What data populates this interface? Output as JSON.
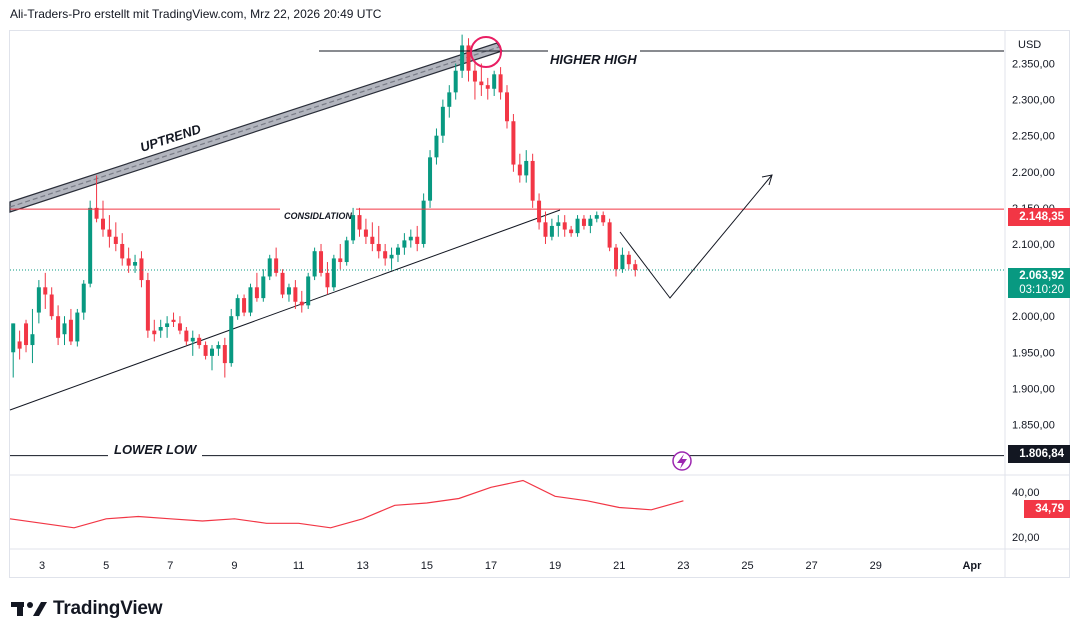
{
  "header": {
    "attribution": "Ali-Traders-Pro erstellt mit TradingView.com, Mrz 22, 2026 20:49 UTC"
  },
  "brand": {
    "name": "TradingView"
  },
  "chart_data": {
    "type": "candlestick",
    "price_axis": {
      "currency": "USD",
      "ticks": [
        "2.350,00",
        "2.300,00",
        "2.250,00",
        "2.200,00",
        "2.150,00",
        "2.100,00",
        "2.050,00",
        "2.000,00",
        "1.950,00",
        "1.900,00",
        "1.850,00"
      ],
      "tick_values": [
        2350,
        2300,
        2250,
        2200,
        2150,
        2100,
        2050,
        2000,
        1950,
        1900,
        1850
      ],
      "range": [
        1780,
        2395
      ]
    },
    "time_axis": {
      "ticks": [
        "3",
        "5",
        "7",
        "9",
        "11",
        "13",
        "15",
        "17",
        "19",
        "21",
        "23",
        "25",
        "27",
        "29",
        "Apr"
      ],
      "tick_positions": [
        3,
        5,
        7,
        9,
        11,
        13,
        15,
        17,
        19,
        21,
        23,
        25,
        27,
        29,
        32
      ],
      "range": [
        2.0,
        33.0
      ]
    },
    "price_labels": [
      {
        "value": 2148.35,
        "text": "2.148,35",
        "color": "#f23645"
      },
      {
        "value": 2063.92,
        "text": "2.063,92",
        "subtext": "03:10:20",
        "color": "#089981"
      },
      {
        "value": 1806.84,
        "text": "1.806,84",
        "color": "#131722"
      }
    ],
    "annotations": {
      "higher_high": "HIGHER HIGH",
      "uptrend": "UPTREND",
      "consolidation": "CONSIDLATION",
      "lower_low": "LOWER LOW"
    },
    "levels": {
      "higher_high": 2380,
      "consolidation": 2148.35,
      "lower_low": 1806.84,
      "last_price": 2063.92
    },
    "candles": [
      [
        2.1,
        1950,
        1990,
        1915,
        1990
      ],
      [
        2.3,
        1965,
        1980,
        1940,
        1955
      ],
      [
        2.5,
        1990,
        1995,
        1950,
        1960
      ],
      [
        2.7,
        1960,
        2010,
        1935,
        1975
      ],
      [
        2.9,
        2005,
        2050,
        1990,
        2040
      ],
      [
        3.1,
        2040,
        2060,
        2010,
        2030
      ],
      [
        3.3,
        2030,
        2040,
        1995,
        2000
      ],
      [
        3.5,
        2000,
        2015,
        1960,
        1970
      ],
      [
        3.7,
        1975,
        2000,
        1960,
        1990
      ],
      [
        3.9,
        1995,
        2010,
        1960,
        1965
      ],
      [
        4.1,
        1965,
        2010,
        1958,
        2005
      ],
      [
        4.3,
        2005,
        2050,
        1995,
        2045
      ],
      [
        4.5,
        2045,
        2160,
        2040,
        2150
      ],
      [
        4.7,
        2150,
        2195,
        2130,
        2135
      ],
      [
        4.9,
        2135,
        2160,
        2110,
        2120
      ],
      [
        5.1,
        2120,
        2140,
        2095,
        2110
      ],
      [
        5.3,
        2110,
        2130,
        2090,
        2100
      ],
      [
        5.5,
        2100,
        2115,
        2070,
        2080
      ],
      [
        5.7,
        2080,
        2095,
        2060,
        2070
      ],
      [
        5.9,
        2070,
        2085,
        2060,
        2075
      ],
      [
        6.1,
        2080,
        2090,
        2040,
        2050
      ],
      [
        6.3,
        2050,
        2060,
        1970,
        1980
      ],
      [
        6.5,
        1980,
        1995,
        1965,
        1975
      ],
      [
        6.7,
        1980,
        1995,
        1970,
        1985
      ],
      [
        6.9,
        1985,
        2000,
        1970,
        1990
      ],
      [
        7.1,
        1995,
        2005,
        1985,
        1992
      ],
      [
        7.3,
        1990,
        2000,
        1975,
        1980
      ],
      [
        7.5,
        1980,
        1985,
        1960,
        1965
      ],
      [
        7.7,
        1965,
        1980,
        1945,
        1970
      ],
      [
        7.9,
        1970,
        1975,
        1955,
        1960
      ],
      [
        8.1,
        1960,
        1965,
        1940,
        1945
      ],
      [
        8.3,
        1945,
        1960,
        1925,
        1955
      ],
      [
        8.5,
        1955,
        1965,
        1945,
        1960
      ],
      [
        8.7,
        1960,
        1970,
        1915,
        1935
      ],
      [
        8.9,
        1935,
        2010,
        1930,
        2000
      ],
      [
        9.1,
        2000,
        2030,
        1995,
        2025
      ],
      [
        9.3,
        2025,
        2030,
        2000,
        2005
      ],
      [
        9.5,
        2005,
        2045,
        2000,
        2040
      ],
      [
        9.7,
        2040,
        2060,
        2020,
        2025
      ],
      [
        9.9,
        2025,
        2065,
        2020,
        2055
      ],
      [
        10.1,
        2055,
        2085,
        2050,
        2080
      ],
      [
        10.3,
        2080,
        2095,
        2055,
        2060
      ],
      [
        10.5,
        2060,
        2065,
        2025,
        2030
      ],
      [
        10.7,
        2030,
        2045,
        2020,
        2040
      ],
      [
        10.9,
        2040,
        2050,
        2010,
        2020
      ],
      [
        11.1,
        2020,
        2035,
        2005,
        2015
      ],
      [
        11.3,
        2015,
        2060,
        2010,
        2055
      ],
      [
        11.5,
        2055,
        2095,
        2050,
        2090
      ],
      [
        11.7,
        2090,
        2100,
        2055,
        2060
      ],
      [
        11.9,
        2060,
        2075,
        2030,
        2040
      ],
      [
        12.1,
        2040,
        2085,
        2035,
        2080
      ],
      [
        12.3,
        2080,
        2100,
        2065,
        2075
      ],
      [
        12.5,
        2075,
        2110,
        2070,
        2105
      ],
      [
        12.7,
        2105,
        2150,
        2100,
        2140
      ],
      [
        12.9,
        2140,
        2150,
        2110,
        2120
      ],
      [
        13.1,
        2120,
        2135,
        2100,
        2110
      ],
      [
        13.3,
        2110,
        2130,
        2090,
        2100
      ],
      [
        13.5,
        2100,
        2125,
        2080,
        2090
      ],
      [
        13.7,
        2090,
        2100,
        2070,
        2080
      ],
      [
        13.9,
        2080,
        2095,
        2065,
        2085
      ],
      [
        14.1,
        2085,
        2100,
        2075,
        2095
      ],
      [
        14.3,
        2095,
        2115,
        2085,
        2105
      ],
      [
        14.5,
        2105,
        2120,
        2095,
        2110
      ],
      [
        14.7,
        2110,
        2125,
        2090,
        2100
      ],
      [
        14.9,
        2100,
        2170,
        2095,
        2160
      ],
      [
        15.1,
        2160,
        2230,
        2150,
        2220
      ],
      [
        15.3,
        2220,
        2260,
        2210,
        2250
      ],
      [
        15.5,
        2250,
        2300,
        2240,
        2290
      ],
      [
        15.7,
        2290,
        2320,
        2275,
        2310
      ],
      [
        15.9,
        2310,
        2350,
        2300,
        2340
      ],
      [
        16.1,
        2340,
        2390,
        2330,
        2375
      ],
      [
        16.3,
        2375,
        2385,
        2325,
        2340
      ],
      [
        16.5,
        2340,
        2350,
        2300,
        2325
      ],
      [
        16.7,
        2325,
        2350,
        2305,
        2320
      ],
      [
        16.9,
        2320,
        2330,
        2300,
        2315
      ],
      [
        17.1,
        2315,
        2340,
        2305,
        2335
      ],
      [
        17.3,
        2335,
        2345,
        2300,
        2310
      ],
      [
        17.5,
        2310,
        2320,
        2260,
        2270
      ],
      [
        17.7,
        2270,
        2280,
        2200,
        2210
      ],
      [
        17.9,
        2210,
        2225,
        2185,
        2195
      ],
      [
        18.1,
        2195,
        2230,
        2185,
        2215
      ],
      [
        18.3,
        2215,
        2225,
        2150,
        2160
      ],
      [
        18.5,
        2160,
        2170,
        2120,
        2130
      ],
      [
        18.7,
        2130,
        2145,
        2100,
        2110
      ],
      [
        18.9,
        2110,
        2135,
        2105,
        2125
      ],
      [
        19.1,
        2125,
        2140,
        2110,
        2130
      ],
      [
        19.3,
        2130,
        2140,
        2110,
        2120
      ],
      [
        19.5,
        2120,
        2125,
        2110,
        2115
      ],
      [
        19.7,
        2115,
        2140,
        2110,
        2135
      ],
      [
        19.9,
        2135,
        2140,
        2120,
        2125
      ],
      [
        20.1,
        2125,
        2140,
        2115,
        2135
      ],
      [
        20.3,
        2135,
        2145,
        2130,
        2140
      ],
      [
        20.5,
        2140,
        2145,
        2125,
        2130
      ],
      [
        20.7,
        2130,
        2135,
        2090,
        2095
      ],
      [
        20.9,
        2095,
        2100,
        2055,
        2065
      ],
      [
        21.1,
        2065,
        2095,
        2060,
        2085
      ],
      [
        21.3,
        2085,
        2090,
        2065,
        2072
      ],
      [
        21.5,
        2072,
        2078,
        2055,
        2064
      ]
    ],
    "indicator": {
      "type": "line",
      "ticks": [
        "40,00",
        "20,00"
      ],
      "tick_values": [
        40,
        20
      ],
      "range": [
        15,
        47
      ],
      "last_value": 34.79,
      "last_label": "34,79",
      "x": [
        2,
        3,
        4,
        5,
        6,
        7,
        8,
        9,
        10,
        11,
        12,
        13,
        14,
        15,
        16,
        17,
        18,
        19,
        20,
        21,
        22,
        23
      ],
      "values": [
        28,
        26,
        24,
        28,
        29,
        28,
        27,
        28,
        26,
        26,
        24,
        28,
        34,
        35,
        37,
        42,
        45,
        38,
        36,
        33,
        32,
        36
      ]
    }
  }
}
